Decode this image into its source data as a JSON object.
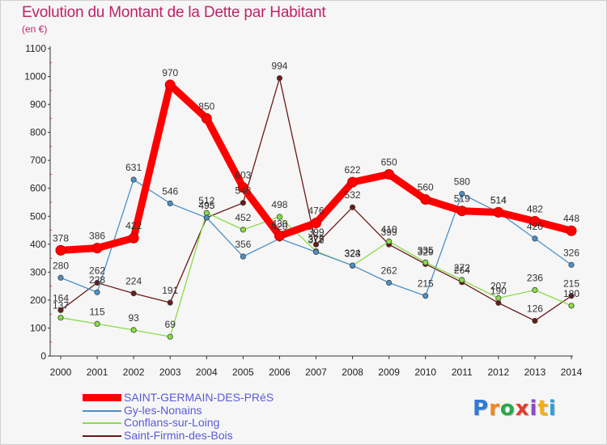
{
  "chart_data": {
    "type": "line",
    "title": "Evolution du Montant de la Dette par Habitant",
    "subtitle": "(en €)",
    "x": [
      "2000",
      "2001",
      "2002",
      "2003",
      "2004",
      "2005",
      "2006",
      "2007",
      "2008",
      "2009",
      "2010",
      "2011",
      "2012",
      "2013",
      "2014"
    ],
    "ylim": [
      0,
      1100
    ],
    "yticks": [
      0,
      100,
      200,
      300,
      400,
      500,
      600,
      700,
      800,
      900,
      1000,
      1100
    ],
    "grid": false,
    "legend_placement": "bottom-left",
    "series": [
      {
        "name": "SAINT-GERMAIN-DES-PRéS",
        "color": "#ff0000",
        "values": [
          378,
          386,
          422,
          970,
          850,
          603,
          430,
          476,
          622,
          650,
          560,
          519,
          514,
          482,
          448
        ],
        "labels": [
          "378",
          "386",
          "422",
          "970",
          "850",
          "603",
          "430",
          "476",
          "622",
          "650",
          "560",
          "519",
          "514",
          "482",
          "448"
        ]
      },
      {
        "name": "Gy-les-Nonains",
        "color": "#4a90c8",
        "values": [
          280,
          228,
          631,
          546,
          495,
          356,
          420,
          372,
          324,
          262,
          215,
          580,
          514,
          420,
          326
        ],
        "labels": [
          "280",
          "228",
          "631",
          "546",
          "495",
          "356",
          "420",
          "372",
          "324",
          "262",
          "215",
          "580",
          "514",
          "420",
          "326"
        ]
      },
      {
        "name": "Conflans-sur-Loing",
        "color": "#88dd44",
        "values": [
          137,
          115,
          93,
          69,
          512,
          452,
          498,
          375,
          323,
          410,
          335,
          272,
          207,
          236,
          180
        ],
        "labels": [
          "137",
          "115",
          "93",
          "69",
          "512",
          "452",
          "498",
          "375",
          "323",
          "410",
          "335",
          "272",
          "207",
          "236",
          "180"
        ]
      },
      {
        "name": "Saint-Firmin-des-Bois",
        "color": "#6b1818",
        "values": [
          164,
          262,
          224,
          191,
          495,
          548,
          994,
          399,
          532,
          399,
          329,
          264,
          190,
          126,
          215
        ],
        "labels": [
          "164",
          "262",
          "224",
          "191",
          "495",
          "548",
          "994",
          "399",
          "532",
          "399",
          "329",
          "264",
          "190",
          "126",
          "215"
        ]
      }
    ]
  },
  "legend": {
    "items": [
      {
        "label": "SAINT-GERMAIN-DES-PRéS",
        "color": "#ff0000"
      },
      {
        "label": "Gy-les-Nonains",
        "color": "#4a90c8"
      },
      {
        "label": "Conflans-sur-Loing",
        "color": "#88dd44"
      },
      {
        "label": "Saint-Firmin-des-Bois",
        "color": "#6b1818"
      }
    ]
  },
  "logo": {
    "letters": [
      "P",
      "r",
      "o",
      "x",
      "i",
      "t",
      "i"
    ],
    "colors": [
      "#2d7ad6",
      "#f08a1c",
      "#2aa84a",
      "#e23b2e",
      "#8a4cc4",
      "#f0b01c",
      "#2d9fd6"
    ]
  }
}
